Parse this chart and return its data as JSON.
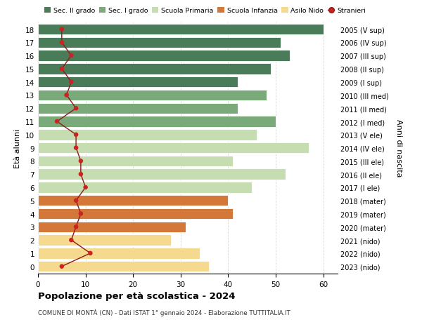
{
  "ages": [
    0,
    1,
    2,
    3,
    4,
    5,
    6,
    7,
    8,
    9,
    10,
    11,
    12,
    13,
    14,
    15,
    16,
    17,
    18
  ],
  "years": [
    "2023 (nido)",
    "2022 (nido)",
    "2021 (nido)",
    "2020 (mater)",
    "2019 (mater)",
    "2018 (mater)",
    "2017 (I ele)",
    "2016 (II ele)",
    "2015 (III ele)",
    "2014 (IV ele)",
    "2013 (V ele)",
    "2012 (I med)",
    "2011 (II med)",
    "2010 (III med)",
    "2009 (I sup)",
    "2008 (II sup)",
    "2007 (III sup)",
    "2006 (IV sup)",
    "2005 (V sup)"
  ],
  "bar_values": [
    36,
    34,
    28,
    31,
    41,
    40,
    45,
    52,
    41,
    57,
    46,
    50,
    42,
    48,
    42,
    49,
    53,
    51,
    60
  ],
  "stranieri": [
    5,
    11,
    7,
    8,
    9,
    8,
    10,
    9,
    9,
    8,
    8,
    4,
    8,
    6,
    7,
    5,
    7,
    5,
    5
  ],
  "bar_colors": {
    "Sec. II grado": "#4a7c59",
    "Sec. I grado": "#7aaa7a",
    "Scuola Primaria": "#c5ddb0",
    "Scuola Infanzia": "#d4783a",
    "Asilo Nido": "#f5d98e"
  },
  "category_for_age": {
    "0": "Asilo Nido",
    "1": "Asilo Nido",
    "2": "Asilo Nido",
    "3": "Scuola Infanzia",
    "4": "Scuola Infanzia",
    "5": "Scuola Infanzia",
    "6": "Scuola Primaria",
    "7": "Scuola Primaria",
    "8": "Scuola Primaria",
    "9": "Scuola Primaria",
    "10": "Scuola Primaria",
    "11": "Sec. I grado",
    "12": "Sec. I grado",
    "13": "Sec. I grado",
    "14": "Sec. II grado",
    "15": "Sec. II grado",
    "16": "Sec. II grado",
    "17": "Sec. II grado",
    "18": "Sec. II grado"
  },
  "legend_order": [
    "Sec. II grado",
    "Sec. I grado",
    "Scuola Primaria",
    "Scuola Infanzia",
    "Asilo Nido",
    "Stranieri"
  ],
  "stranieri_color": "#cc2222",
  "stranieri_line_color": "#8b1a1a",
  "title": "Popolazione per età scolastica - 2024",
  "subtitle": "COMUNE DI MONTÀ (CN) - Dati ISTAT 1° gennaio 2024 - Elaborazione TUTTITALIA.IT",
  "ylabel_left": "Età alunni",
  "ylabel_right": "Anni di nascita",
  "xlim": [
    0,
    63
  ],
  "grid_color": "#cccccc"
}
